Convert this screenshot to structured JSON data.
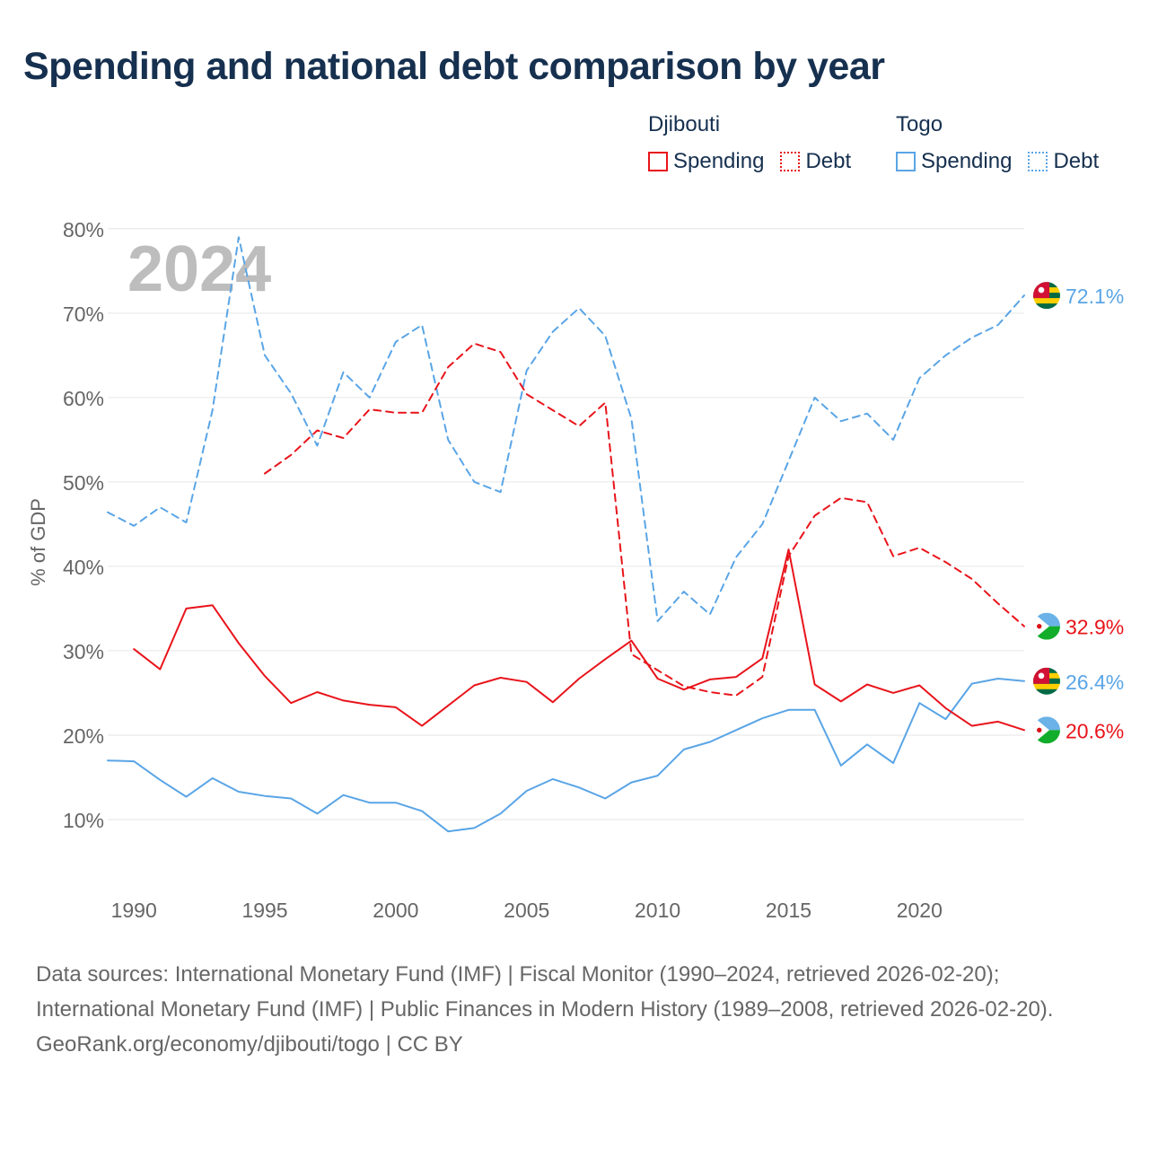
{
  "title": "Spending and national debt comparison by year",
  "legend": {
    "groups": [
      {
        "name": "Djibouti",
        "color": "#e8141b",
        "items": [
          {
            "label": "Spending",
            "style": "solid"
          },
          {
            "label": "Debt",
            "style": "dotted"
          }
        ]
      },
      {
        "name": "Togo",
        "color": "#5aa5e6",
        "items": [
          {
            "label": "Spending",
            "style": "solid"
          },
          {
            "label": "Debt",
            "style": "dotted"
          }
        ]
      }
    ]
  },
  "year_watermark": "2024",
  "footer": {
    "sources": "Data sources: International Monetary Fund (IMF) | Fiscal Monitor (1990–2024, retrieved 2026-02-20); International Monetary Fund (IMF) | Public Finances in Modern History (1989–2008, retrieved 2026-02-20).",
    "credit": "GeoRank.org/economy/djibouti/togo | CC BY"
  },
  "chart_data": {
    "type": "line",
    "title": "Spending and national debt comparison by year",
    "xlabel": "",
    "ylabel": "% of GDP",
    "xlim": [
      1989,
      2024
    ],
    "ylim": [
      5,
      82
    ],
    "xticks": [
      1990,
      1995,
      2000,
      2005,
      2010,
      2015,
      2020
    ],
    "yticks": [
      10,
      20,
      30,
      40,
      50,
      60,
      70,
      80
    ],
    "ytick_labels": [
      "10%",
      "20%",
      "30%",
      "40%",
      "50%",
      "60%",
      "70%",
      "80%"
    ],
    "grid": true,
    "series": [
      {
        "name": "Togo Debt",
        "country": "Togo",
        "metric": "Debt",
        "color": "#5aa5e6",
        "dash": "dashed",
        "x": [
          1989,
          1990,
          1991,
          1992,
          1993,
          1994,
          1995,
          1996,
          1997,
          1998,
          1999,
          2000,
          2001,
          2002,
          2003,
          2004,
          2005,
          2006,
          2007,
          2008,
          2009,
          2010,
          2011,
          2012,
          2013,
          2014,
          2015,
          2016,
          2017,
          2018,
          2019,
          2020,
          2021,
          2022,
          2023,
          2024
        ],
        "values": [
          46.4,
          44.8,
          47.0,
          45.2,
          58.5,
          79.0,
          65.0,
          60.5,
          54.3,
          63.0,
          60.0,
          66.6,
          68.6,
          55.0,
          50.0,
          48.8,
          63.2,
          67.8,
          70.6,
          67.3,
          57.5,
          33.5,
          37.0,
          34.3,
          41.1,
          45.0,
          52.5,
          60.0,
          57.2,
          58.1,
          55.0,
          62.3,
          65.0,
          67.1,
          68.6,
          72.1
        ],
        "end_label": "72.1%"
      },
      {
        "name": "Djibouti Debt",
        "country": "Djibouti",
        "metric": "Debt",
        "color": "#e8141b",
        "dash": "dashed",
        "x": [
          1995,
          1996,
          1997,
          1998,
          1999,
          2000,
          2001,
          2002,
          2003,
          2004,
          2005,
          2006,
          2007,
          2008,
          2009,
          2010,
          2011,
          2012,
          2013,
          2014,
          2015,
          2016,
          2017,
          2018,
          2019,
          2020,
          2021,
          2022,
          2023,
          2024
        ],
        "values": [
          51.0,
          53.2,
          56.1,
          55.2,
          58.6,
          58.2,
          58.2,
          63.6,
          66.4,
          65.4,
          60.4,
          58.5,
          56.6,
          59.4,
          29.6,
          27.7,
          25.8,
          25.1,
          24.7,
          26.9,
          41.2,
          46.0,
          48.1,
          47.6,
          41.2,
          42.2,
          40.5,
          38.5,
          35.6,
          32.9
        ],
        "end_label": "32.9%"
      },
      {
        "name": "Togo Spending",
        "country": "Togo",
        "metric": "Spending",
        "color": "#5aa5e6",
        "dash": "solid",
        "x": [
          1989,
          1990,
          1991,
          1992,
          1993,
          1994,
          1995,
          1996,
          1997,
          1998,
          1999,
          2000,
          2001,
          2002,
          2003,
          2004,
          2005,
          2006,
          2007,
          2008,
          2009,
          2010,
          2011,
          2012,
          2013,
          2014,
          2015,
          2016,
          2017,
          2018,
          2019,
          2020,
          2021,
          2022,
          2023,
          2024
        ],
        "values": [
          17.0,
          16.9,
          14.7,
          12.7,
          14.9,
          13.3,
          12.8,
          12.5,
          10.7,
          12.9,
          12.0,
          12.0,
          11.0,
          8.6,
          9.0,
          10.7,
          13.4,
          14.8,
          13.8,
          12.5,
          14.4,
          15.2,
          18.3,
          19.2,
          20.6,
          22.0,
          23.0,
          23.0,
          16.4,
          18.9,
          16.7,
          23.8,
          21.9,
          26.1,
          26.7,
          26.4
        ],
        "end_label": "26.4%"
      },
      {
        "name": "Djibouti Spending",
        "country": "Djibouti",
        "metric": "Spending",
        "color": "#e8141b",
        "dash": "solid",
        "x": [
          1990,
          1991,
          1992,
          1993,
          1994,
          1995,
          1996,
          1997,
          1998,
          1999,
          2000,
          2001,
          2002,
          2003,
          2004,
          2005,
          2006,
          2007,
          2008,
          2009,
          2010,
          2011,
          2012,
          2013,
          2014,
          2015,
          2016,
          2017,
          2018,
          2019,
          2020,
          2021,
          2022,
          2023,
          2024
        ],
        "values": [
          30.2,
          27.8,
          35.0,
          35.4,
          30.9,
          27.0,
          23.8,
          25.1,
          24.1,
          23.6,
          23.3,
          21.1,
          23.5,
          25.9,
          26.8,
          26.3,
          23.9,
          26.7,
          29.0,
          31.2,
          26.7,
          25.4,
          26.6,
          26.9,
          29.1,
          42.0,
          26.0,
          24.0,
          26.0,
          25.0,
          25.9,
          23.2,
          21.1,
          21.6,
          20.6
        ],
        "end_label": "20.6%"
      }
    ]
  }
}
